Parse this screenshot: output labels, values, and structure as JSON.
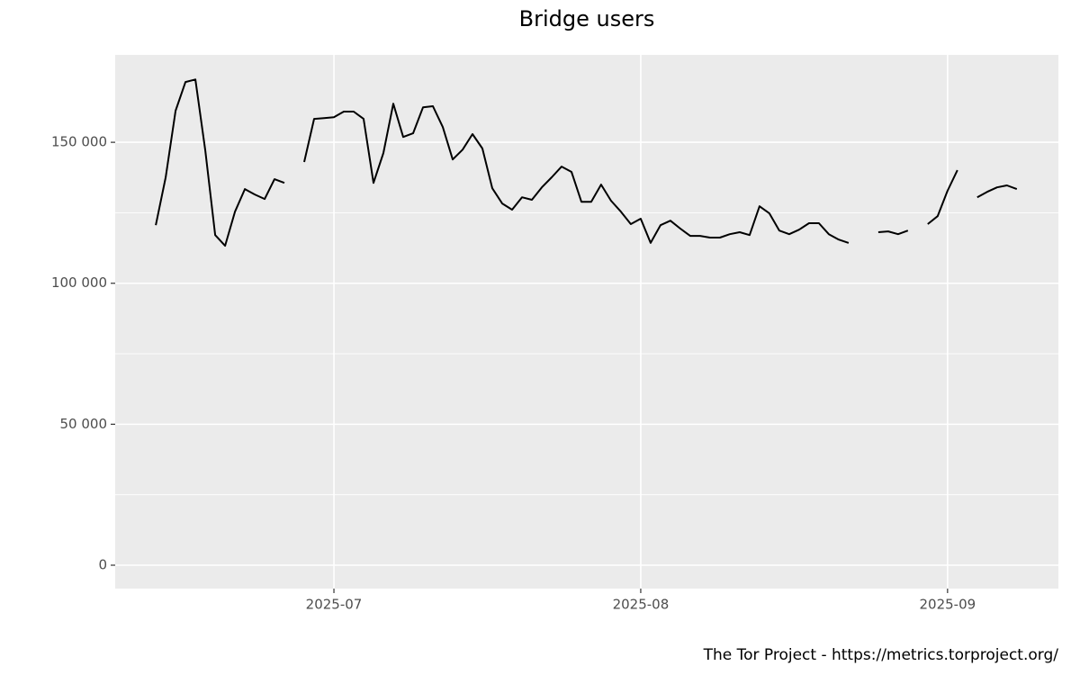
{
  "chart_data": {
    "type": "line",
    "title": "Bridge users",
    "caption": "The Tor Project - https://metrics.torproject.org/",
    "x": [
      164,
      165,
      166,
      167,
      168,
      169,
      170,
      171,
      172,
      173,
      174,
      175,
      176,
      177,
      178,
      179,
      180,
      181,
      182,
      183,
      184,
      185,
      186,
      187,
      188,
      189,
      190,
      191,
      192,
      193,
      194,
      195,
      196,
      197,
      198,
      199,
      200,
      201,
      202,
      203,
      204,
      205,
      206,
      207,
      208,
      209,
      210,
      211,
      212,
      213,
      214,
      215,
      216,
      217,
      218,
      219,
      220,
      221,
      222,
      223,
      224,
      225,
      226,
      227,
      228,
      229,
      230,
      231,
      232,
      233,
      234,
      235,
      236,
      237,
      238,
      239,
      240,
      241,
      242,
      243,
      244,
      245,
      246,
      247,
      248,
      249,
      250,
      251
    ],
    "series": [
      {
        "name": "Bridge users",
        "color": "#000000",
        "values": [
          120600,
          137600,
          161200,
          171400,
          172300,
          147100,
          117100,
          113300,
          125400,
          133400,
          131500,
          129900,
          136900,
          135600,
          null,
          143000,
          158300,
          158600,
          158900,
          160900,
          160900,
          158300,
          135600,
          146200,
          163700,
          151900,
          153200,
          162400,
          162800,
          155400,
          143900,
          147400,
          152900,
          147800,
          133700,
          128300,
          126100,
          130500,
          129600,
          134000,
          137600,
          141400,
          139500,
          128900,
          128900,
          135000,
          129300,
          125400,
          121000,
          122900,
          114300,
          120600,
          122200,
          119400,
          116800,
          116800,
          116200,
          116200,
          117400,
          118100,
          117100,
          127300,
          124800,
          118700,
          117400,
          119000,
          121300,
          121300,
          117400,
          115500,
          114300,
          null,
          null,
          118100,
          118400,
          117400,
          118700,
          null,
          121000,
          123800,
          132800,
          140100,
          null,
          130500,
          132400,
          134000,
          134700,
          133400
        ]
      }
    ],
    "xlim": [
      159.9,
      255.2
    ],
    "xticks": [
      {
        "value": 182,
        "label": "2025-07"
      },
      {
        "value": 213,
        "label": "2025-08"
      },
      {
        "value": 244,
        "label": "2025-09"
      }
    ],
    "ylim": [
      -8300,
      181000
    ],
    "yticks": [
      0,
      {
        "value": 50000,
        "label": "50 000"
      },
      {
        "value": 100000,
        "label": "100 000"
      },
      {
        "value": 150000,
        "label": "150 000"
      }
    ],
    "grid": true
  }
}
